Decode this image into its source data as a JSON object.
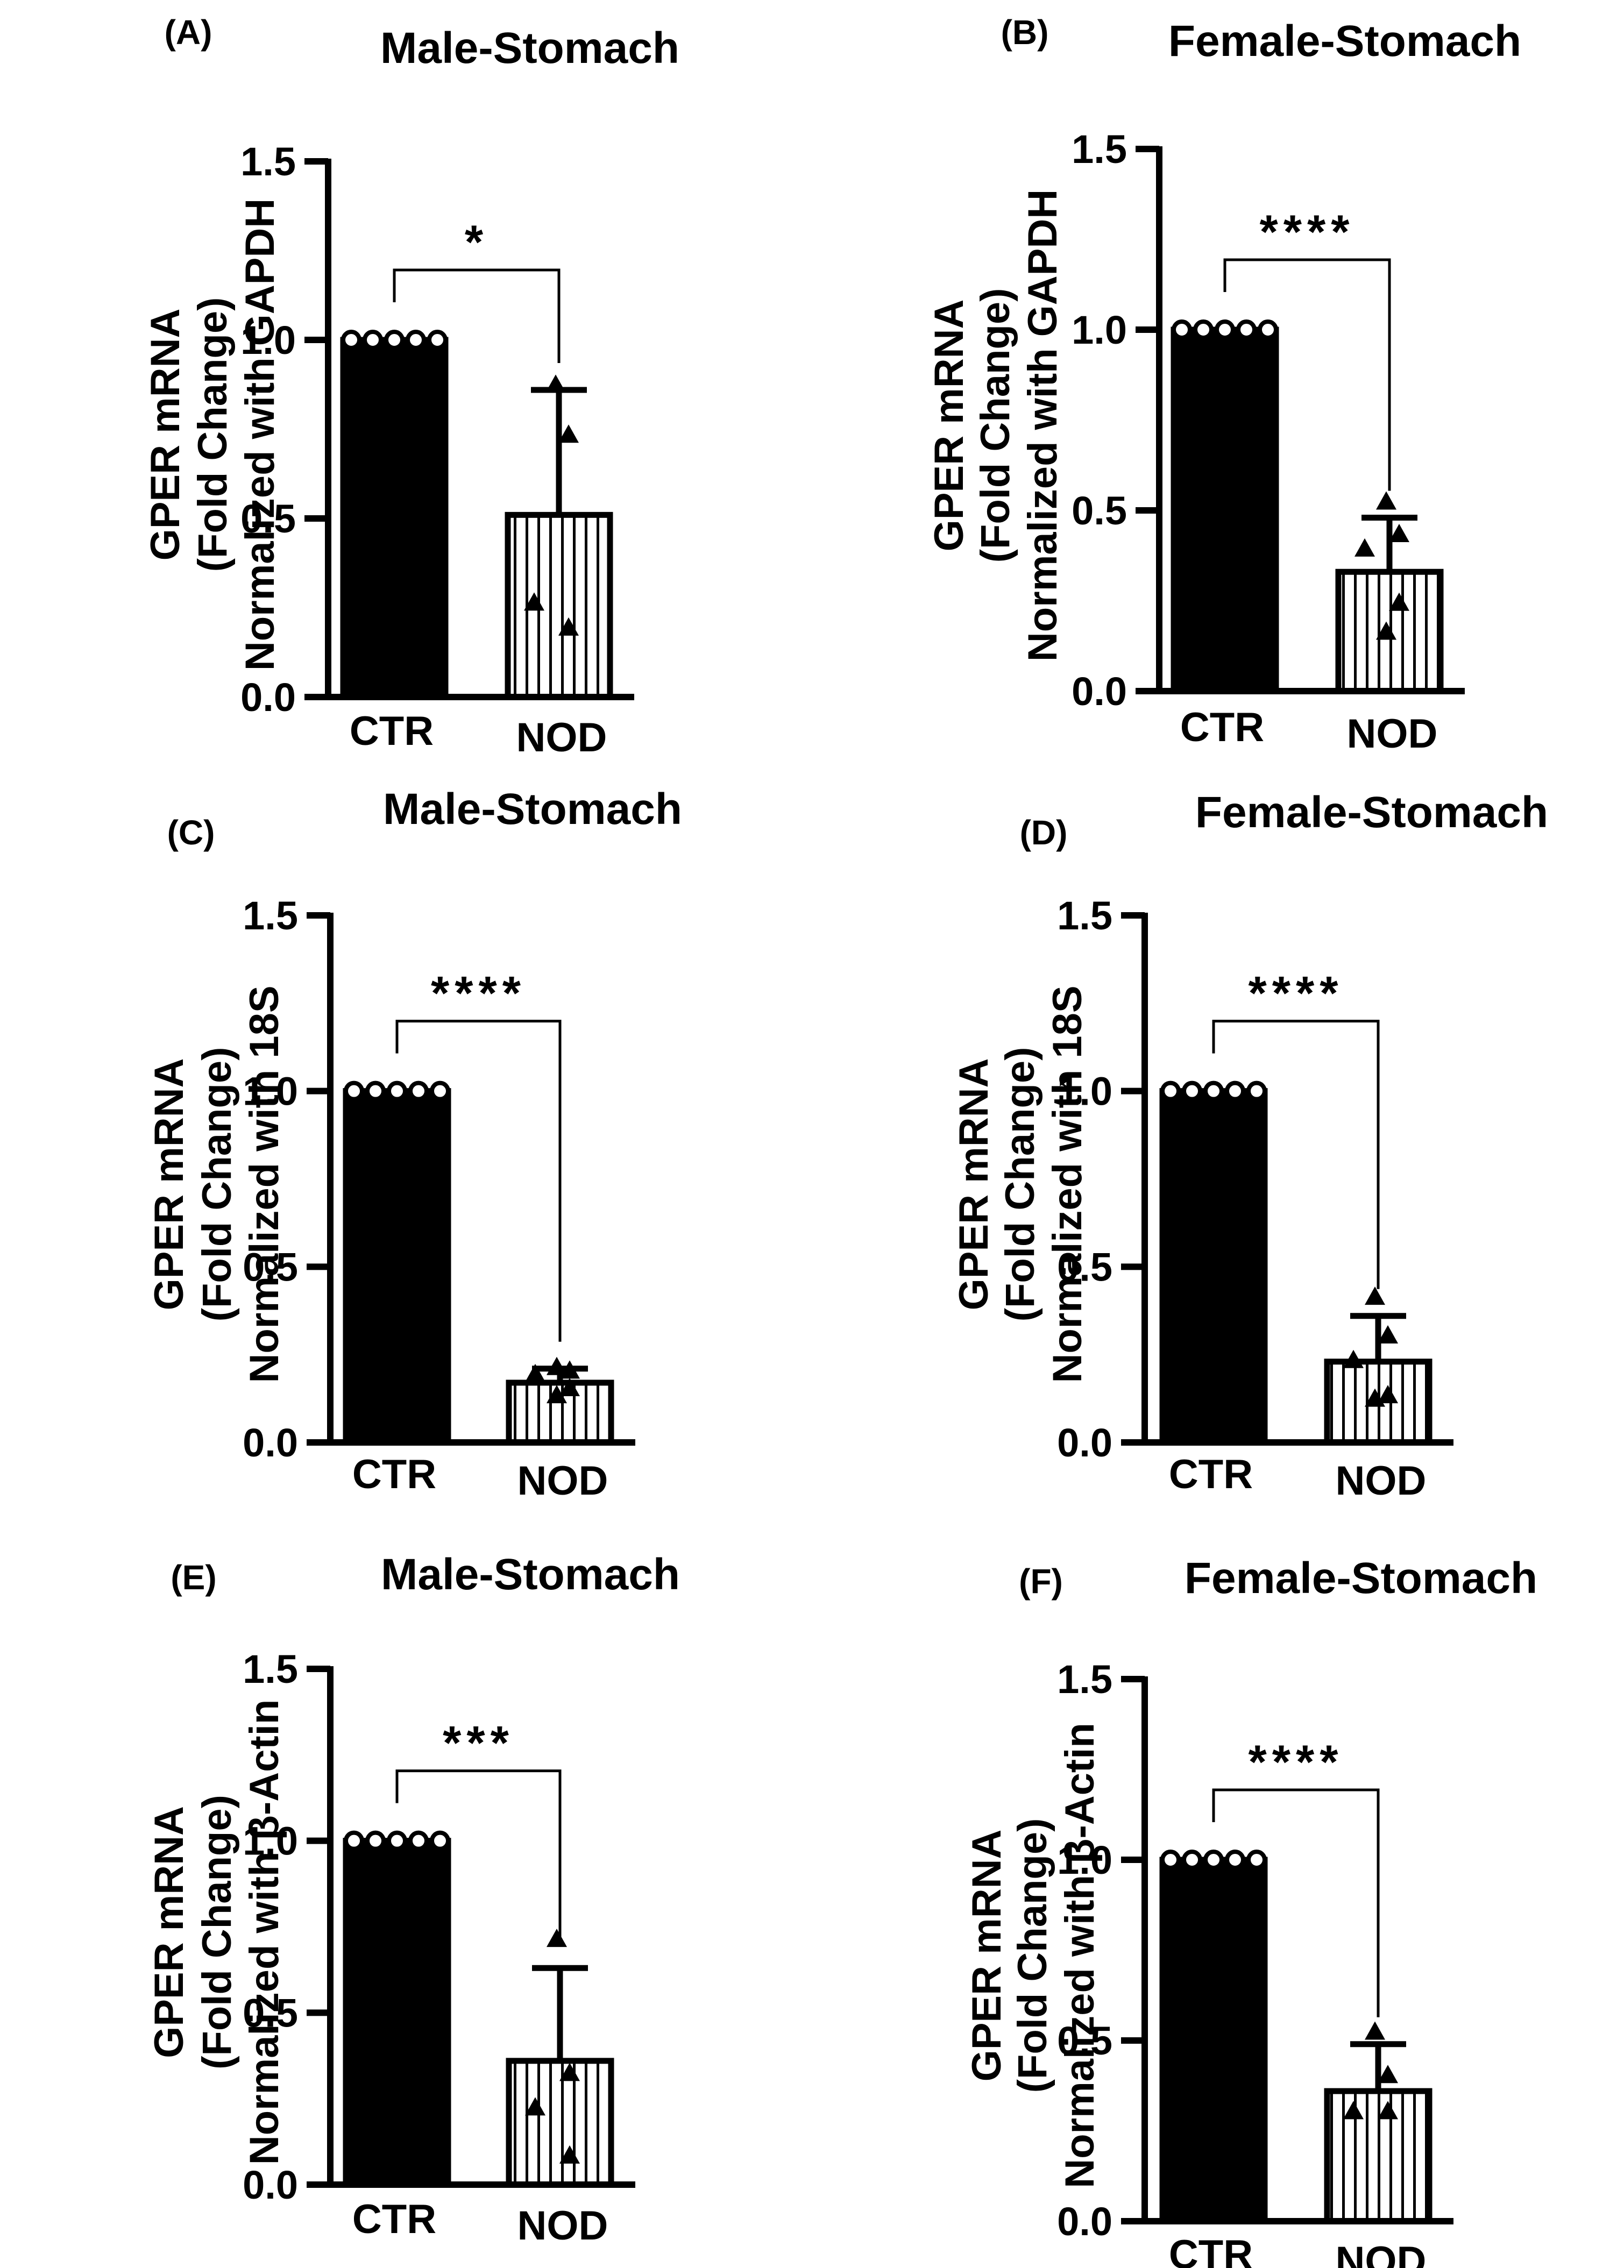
{
  "figure": {
    "ylabel_line1": "GPER mRNA",
    "ylabel_line2": "(Fold Change)"
  },
  "chart_data": [
    {
      "type": "bar",
      "panel": "(A)",
      "title": "Male-Stomach",
      "ylabel": [
        "GPER mRNA",
        "(Fold Change)",
        "Normalized with GAPDH"
      ],
      "ylim": [
        0,
        1.5
      ],
      "yticks": [
        0.0,
        0.5,
        1.0,
        1.5
      ],
      "tick_labels": [
        "0.0",
        "0.5",
        "1.0",
        "1.5"
      ],
      "categories": [
        "CTR",
        "NOD"
      ],
      "values": [
        1.0,
        0.51
      ],
      "error": [
        0,
        0.35
      ],
      "points": [
        [
          1,
          1,
          1,
          1,
          1
        ],
        [
          0.87,
          0.73,
          0.26,
          0.19
        ]
      ],
      "significance": "*"
    },
    {
      "type": "bar",
      "panel": "(B)",
      "title": "Female-Stomach",
      "ylabel": [
        "GPER mRNA",
        "(Fold Change)",
        "Normalized with GAPDH"
      ],
      "ylim": [
        0,
        1.5
      ],
      "yticks": [
        0.0,
        0.5,
        1.0,
        1.5
      ],
      "tick_labels": [
        "0.0",
        "0.5",
        "1.0",
        "1.5"
      ],
      "categories": [
        "CTR",
        "NOD"
      ],
      "values": [
        1.0,
        0.33
      ],
      "error": [
        0,
        0.15
      ],
      "points": [
        [
          1,
          1,
          1,
          1,
          1
        ],
        [
          0.52,
          0.43,
          0.39,
          0.24,
          0.16
        ]
      ],
      "significance": "****"
    },
    {
      "type": "bar",
      "panel": "(C)",
      "title": "Male-Stomach",
      "ylabel": [
        "GPER mRNA",
        "(Fold Change)",
        "Normalized with 18S"
      ],
      "ylim": [
        0,
        1.5
      ],
      "yticks": [
        0.0,
        0.5,
        1.0,
        1.5
      ],
      "tick_labels": [
        "0.0",
        "0.5",
        "1.0",
        "1.5"
      ],
      "categories": [
        "CTR",
        "NOD"
      ],
      "values": [
        1.0,
        0.17
      ],
      "error": [
        0,
        0.04
      ],
      "points": [
        [
          1,
          1,
          1,
          1,
          1
        ],
        [
          0.21,
          0.2,
          0.19,
          0.15,
          0.13
        ]
      ],
      "significance": "****"
    },
    {
      "type": "bar",
      "panel": "(D)",
      "title": "Female-Stomach",
      "ylabel": [
        "GPER mRNA",
        "(Fold Change)",
        "Normalized with 18S"
      ],
      "ylim": [
        0,
        1.5
      ],
      "yticks": [
        0.0,
        0.5,
        1.0,
        1.5
      ],
      "tick_labels": [
        "0.0",
        "0.5",
        "1.0",
        "1.5"
      ],
      "categories": [
        "CTR",
        "NOD"
      ],
      "values": [
        1.0,
        0.23
      ],
      "error": [
        0,
        0.13
      ],
      "points": [
        [
          1,
          1,
          1,
          1,
          1
        ],
        [
          0.41,
          0.3,
          0.23,
          0.13,
          0.12
        ]
      ],
      "significance": "****"
    },
    {
      "type": "bar",
      "panel": "(E)",
      "title": "Male-Stomach",
      "ylabel": [
        "GPER mRNA",
        "(Fold Change)",
        "Normalized with β-Actin"
      ],
      "ylim": [
        0,
        1.5
      ],
      "yticks": [
        0.0,
        0.5,
        1.0,
        1.5
      ],
      "tick_labels": [
        "0.0",
        "0.5",
        "1.0",
        "1.5"
      ],
      "categories": [
        "CTR",
        "NOD"
      ],
      "values": [
        1.0,
        0.36
      ],
      "error": [
        0,
        0.27
      ],
      "points": [
        [
          1,
          1,
          1,
          1,
          1
        ],
        [
          0.71,
          0.32,
          0.22,
          0.08
        ]
      ],
      "significance": "***"
    },
    {
      "type": "bar",
      "panel": "(F)",
      "title": "Female-Stomach",
      "ylabel": [
        "GPER mRNA",
        "(Fold Change)",
        "Normalized with β-Actin"
      ],
      "ylim": [
        0,
        1.5
      ],
      "yticks": [
        0.0,
        0.5,
        1.0,
        1.5
      ],
      "tick_labels": [
        "0.0",
        "0.5",
        "1.0",
        "1.5"
      ],
      "categories": [
        "CTR",
        "NOD"
      ],
      "values": [
        1.0,
        0.36
      ],
      "error": [
        0,
        0.13
      ],
      "points": [
        [
          1,
          1,
          1,
          1,
          1
        ],
        [
          0.52,
          0.4,
          0.3,
          0.3
        ]
      ],
      "significance": "****"
    }
  ]
}
